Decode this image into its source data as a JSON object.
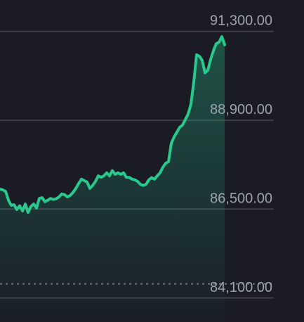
{
  "chart_data": {
    "type": "line",
    "values": [
      87040,
      87020,
      86980,
      86740,
      86600,
      86620,
      86490,
      86590,
      86450,
      86640,
      86410,
      86570,
      86640,
      86530,
      86790,
      86810,
      86700,
      86740,
      86790,
      86760,
      86780,
      86830,
      86910,
      86890,
      86830,
      86870,
      86950,
      87060,
      87190,
      87310,
      87270,
      87230,
      87060,
      87140,
      87250,
      87400,
      87360,
      87400,
      87480,
      87400,
      87540,
      87440,
      87480,
      87440,
      87480,
      87360,
      87360,
      87310,
      87290,
      87250,
      87170,
      87140,
      87170,
      87290,
      87350,
      87310,
      87400,
      87480,
      87630,
      87740,
      87780,
      88280,
      88450,
      88580,
      88710,
      88770,
      88920,
      89070,
      89340,
      89930,
      90670,
      90630,
      90520,
      90180,
      90250,
      90540,
      90780,
      90970,
      91010,
      91160,
      90940
    ],
    "color": "#27c98c",
    "ylim": [
      83450,
      92150
    ],
    "yticks": [
      {
        "value": 91300,
        "label": "91,300.00"
      },
      {
        "value": 88900,
        "label": "88,900.00"
      },
      {
        "value": 86500,
        "label": "86,500.00"
      },
      {
        "value": 84100,
        "label": "84,100.00"
      }
    ],
    "reference_line": 84480,
    "grid": true
  }
}
